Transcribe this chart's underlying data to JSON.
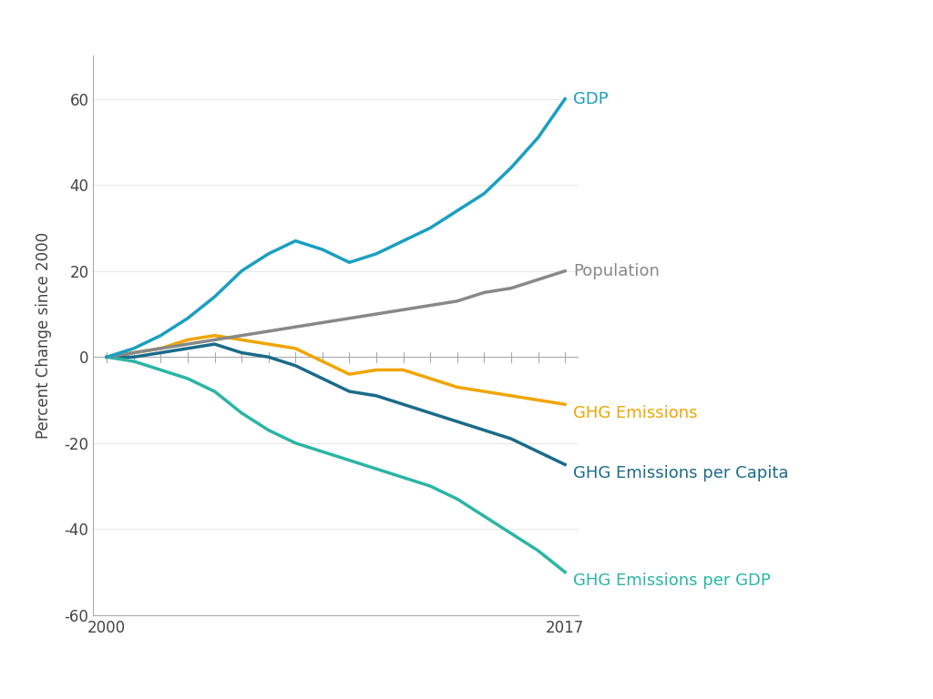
{
  "years": [
    2000,
    2001,
    2002,
    2003,
    2004,
    2005,
    2006,
    2007,
    2008,
    2009,
    2010,
    2011,
    2012,
    2013,
    2014,
    2015,
    2016,
    2017
  ],
  "GDP": [
    0,
    2,
    5,
    9,
    14,
    20,
    24,
    27,
    25,
    22,
    24,
    27,
    30,
    34,
    38,
    44,
    51,
    60
  ],
  "Population": [
    0,
    1,
    2,
    3,
    4,
    5,
    6,
    7,
    8,
    9,
    10,
    11,
    12,
    13,
    15,
    16,
    18,
    20
  ],
  "GHG_Emissions": [
    0,
    1,
    2,
    4,
    5,
    4,
    3,
    2,
    -1,
    -4,
    -3,
    -3,
    -5,
    -7,
    -8,
    -9,
    -10,
    -11
  ],
  "GHG_per_Capita": [
    0,
    0,
    1,
    2,
    3,
    1,
    0,
    -2,
    -5,
    -8,
    -9,
    -11,
    -13,
    -15,
    -17,
    -19,
    -22,
    -25
  ],
  "GHG_per_GDP": [
    0,
    -1,
    -3,
    -5,
    -8,
    -13,
    -17,
    -20,
    -22,
    -24,
    -26,
    -28,
    -30,
    -33,
    -37,
    -41,
    -45,
    -50
  ],
  "colors": {
    "GDP": "#1a9fc0",
    "Population": "#888888",
    "GHG_Emissions": "#f0a500",
    "GHG_per_Capita": "#1a6b8a",
    "GHG_per_GDP": "#2ab5a5"
  },
  "labels": {
    "GDP": "GDP",
    "Population": "Population",
    "GHG_Emissions": "GHG Emissions",
    "GHG_per_Capita": "GHG Emissions per Capita",
    "GHG_per_GDP": "GHG Emissions per GDP"
  },
  "ylabel": "Percent Change since 2000",
  "ylim": [
    -60,
    70
  ],
  "yticks": [
    -60,
    -40,
    -20,
    0,
    20,
    40,
    60
  ],
  "xlim": [
    2000,
    2017
  ],
  "xtick_labels": [
    "2000",
    "2017"
  ],
  "xtick_positions": [
    2000,
    2017
  ],
  "background_color": "#ffffff",
  "line_width": 2.5
}
